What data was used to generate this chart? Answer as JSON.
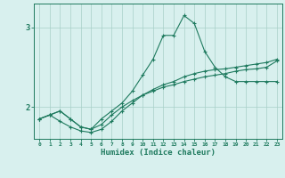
{
  "x": [
    0,
    1,
    2,
    3,
    4,
    5,
    6,
    7,
    8,
    9,
    10,
    11,
    12,
    13,
    14,
    15,
    16,
    17,
    18,
    19,
    20,
    21,
    22,
    23
  ],
  "line1": [
    1.85,
    1.9,
    1.95,
    1.85,
    1.75,
    1.72,
    1.78,
    1.9,
    2.0,
    2.08,
    2.15,
    2.22,
    2.28,
    2.32,
    2.38,
    2.42,
    2.45,
    2.47,
    2.48,
    2.5,
    2.52,
    2.54,
    2.56,
    2.6
  ],
  "line2": [
    1.85,
    1.9,
    1.95,
    1.85,
    1.75,
    1.72,
    1.85,
    1.95,
    2.05,
    2.2,
    2.4,
    2.6,
    2.9,
    2.9,
    3.15,
    3.05,
    2.7,
    2.5,
    2.38,
    2.32,
    2.32,
    2.32,
    2.32,
    2.32
  ],
  "line3": [
    1.85,
    1.9,
    1.82,
    1.75,
    1.7,
    1.68,
    1.72,
    1.82,
    1.95,
    2.05,
    2.15,
    2.2,
    2.25,
    2.28,
    2.32,
    2.35,
    2.38,
    2.4,
    2.42,
    2.45,
    2.47,
    2.48,
    2.5,
    2.58
  ],
  "color": "#1e7a5e",
  "bg_color": "#d8f0ee",
  "grid_color": "#a8cfc8",
  "xlabel": "Humidex (Indice chaleur)",
  "ylim": [
    1.6,
    3.3
  ],
  "xlim": [
    -0.5,
    23.5
  ],
  "yticks": [
    2,
    3
  ],
  "xticks": [
    0,
    1,
    2,
    3,
    4,
    5,
    6,
    7,
    8,
    9,
    10,
    11,
    12,
    13,
    14,
    15,
    16,
    17,
    18,
    19,
    20,
    21,
    22,
    23
  ]
}
